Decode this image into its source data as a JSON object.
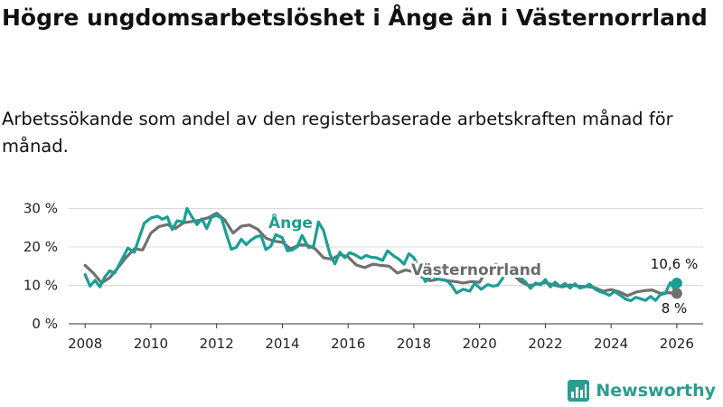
{
  "title": "Högre ungdomsarbetslöshet i Ånge än i Västernorrland",
  "subtitle": "Arbetssökande som andel av den registerbaserade arbetskraften månad för månad.",
  "logo": {
    "text": "Newsworthy",
    "icon": "bar-chart-icon"
  },
  "colors": {
    "ange": "#1a9f94",
    "vasternorrland": "#707070",
    "grid": "#d9d9d9"
  },
  "chart_data": {
    "type": "line",
    "xlabel": "",
    "ylabel": "",
    "xlim": [
      2007.5,
      2026.8
    ],
    "ylim": [
      0,
      32
    ],
    "grid": true,
    "xticks": [
      2008,
      2010,
      2012,
      2014,
      2016,
      2018,
      2020,
      2022,
      2024,
      2026
    ],
    "xtick_labels": [
      "2008",
      "2010",
      "2012",
      "2014",
      "2016",
      "2018",
      "2020",
      "2022",
      "2024",
      "2026"
    ],
    "yticks": [
      0,
      10,
      20,
      30
    ],
    "ytick_labels": [
      "0 %",
      "10 %",
      "20 %",
      "30 %"
    ],
    "series": [
      {
        "name": "Västernorrland",
        "color": "#707070",
        "end_label": "8 %",
        "points": [
          [
            2008.0,
            15.2
          ],
          [
            2008.25,
            13.2
          ],
          [
            2008.5,
            10.6
          ],
          [
            2008.75,
            12.0
          ],
          [
            2009.0,
            14.6
          ],
          [
            2009.25,
            17.3
          ],
          [
            2009.5,
            19.5
          ],
          [
            2009.75,
            19.2
          ],
          [
            2010.0,
            23.6
          ],
          [
            2010.25,
            25.3
          ],
          [
            2010.5,
            25.8
          ],
          [
            2010.75,
            24.8
          ],
          [
            2011.0,
            26.3
          ],
          [
            2011.25,
            26.6
          ],
          [
            2011.5,
            27.0
          ],
          [
            2011.75,
            27.6
          ],
          [
            2012.0,
            28.8
          ],
          [
            2012.25,
            27.0
          ],
          [
            2012.5,
            23.6
          ],
          [
            2012.75,
            25.4
          ],
          [
            2013.0,
            25.7
          ],
          [
            2013.25,
            24.6
          ],
          [
            2013.5,
            22.3
          ],
          [
            2013.75,
            21.5
          ],
          [
            2014.0,
            21.2
          ],
          [
            2014.25,
            19.5
          ],
          [
            2014.5,
            20.5
          ],
          [
            2014.75,
            20.5
          ],
          [
            2015.0,
            19.5
          ],
          [
            2015.25,
            17.2
          ],
          [
            2015.5,
            16.8
          ],
          [
            2015.75,
            18.0
          ],
          [
            2016.0,
            17.4
          ],
          [
            2016.25,
            15.3
          ],
          [
            2016.5,
            14.6
          ],
          [
            2016.75,
            15.5
          ],
          [
            2017.0,
            15.2
          ],
          [
            2017.25,
            15.0
          ],
          [
            2017.5,
            13.2
          ],
          [
            2017.75,
            14.0
          ],
          [
            2018.0,
            13.5
          ],
          [
            2018.25,
            12.1
          ],
          [
            2018.5,
            11.2
          ],
          [
            2018.75,
            11.6
          ],
          [
            2019.0,
            11.2
          ],
          [
            2019.25,
            11.0
          ],
          [
            2019.5,
            10.6
          ],
          [
            2019.75,
            11.0
          ],
          [
            2020.0,
            10.8
          ],
          [
            2020.25,
            14.5
          ],
          [
            2020.5,
            15.5
          ],
          [
            2020.75,
            14.5
          ],
          [
            2021.0,
            13.0
          ],
          [
            2021.25,
            11.0
          ],
          [
            2021.5,
            9.9
          ],
          [
            2021.75,
            10.3
          ],
          [
            2022.0,
            10.7
          ],
          [
            2022.25,
            10.1
          ],
          [
            2022.5,
            9.6
          ],
          [
            2022.75,
            10.1
          ],
          [
            2023.0,
            9.8
          ],
          [
            2023.25,
            9.7
          ],
          [
            2023.5,
            9.4
          ],
          [
            2023.75,
            8.5
          ],
          [
            2024.0,
            8.9
          ],
          [
            2024.25,
            8.3
          ],
          [
            2024.5,
            7.3
          ],
          [
            2024.75,
            8.2
          ],
          [
            2025.0,
            8.6
          ],
          [
            2025.25,
            8.8
          ],
          [
            2025.5,
            7.9
          ],
          [
            2025.75,
            8.1
          ],
          [
            2026.0,
            7.9
          ]
        ]
      },
      {
        "name": "Ånge",
        "color": "#1a9f94",
        "end_label": "10,6 %",
        "points": [
          [
            2008.0,
            12.8
          ],
          [
            2008.15,
            9.8
          ],
          [
            2008.3,
            11.3
          ],
          [
            2008.45,
            9.6
          ],
          [
            2008.6,
            12.2
          ],
          [
            2008.75,
            13.8
          ],
          [
            2008.9,
            13.2
          ],
          [
            2009.1,
            16.4
          ],
          [
            2009.3,
            19.7
          ],
          [
            2009.5,
            18.6
          ],
          [
            2009.65,
            22.5
          ],
          [
            2009.8,
            26.2
          ],
          [
            2010.0,
            27.5
          ],
          [
            2010.2,
            28.0
          ],
          [
            2010.35,
            27.2
          ],
          [
            2010.5,
            27.8
          ],
          [
            2010.65,
            24.5
          ],
          [
            2010.8,
            26.8
          ],
          [
            2011.0,
            26.5
          ],
          [
            2011.1,
            30.0
          ],
          [
            2011.25,
            27.8
          ],
          [
            2011.4,
            25.8
          ],
          [
            2011.55,
            27.3
          ],
          [
            2011.7,
            24.8
          ],
          [
            2011.85,
            27.8
          ],
          [
            2012.0,
            28.2
          ],
          [
            2012.15,
            27.5
          ],
          [
            2012.3,
            23.2
          ],
          [
            2012.45,
            19.4
          ],
          [
            2012.6,
            19.9
          ],
          [
            2012.75,
            22.0
          ],
          [
            2012.9,
            20.6
          ],
          [
            2013.05,
            21.8
          ],
          [
            2013.2,
            22.6
          ],
          [
            2013.35,
            23.0
          ],
          [
            2013.5,
            19.3
          ],
          [
            2013.65,
            20.2
          ],
          [
            2013.8,
            23.2
          ],
          [
            2014.0,
            22.4
          ],
          [
            2014.15,
            19.0
          ],
          [
            2014.3,
            19.2
          ],
          [
            2014.45,
            20.0
          ],
          [
            2014.6,
            23.0
          ],
          [
            2014.8,
            19.8
          ],
          [
            2014.95,
            20.2
          ],
          [
            2015.1,
            26.5
          ],
          [
            2015.25,
            24.3
          ],
          [
            2015.45,
            18.0
          ],
          [
            2015.6,
            15.6
          ],
          [
            2015.75,
            18.6
          ],
          [
            2015.9,
            17.2
          ],
          [
            2016.05,
            18.5
          ],
          [
            2016.2,
            18.0
          ],
          [
            2016.4,
            17.0
          ],
          [
            2016.55,
            17.8
          ],
          [
            2016.7,
            17.3
          ],
          [
            2016.85,
            17.2
          ],
          [
            2017.05,
            16.5
          ],
          [
            2017.2,
            19.0
          ],
          [
            2017.4,
            17.6
          ],
          [
            2017.55,
            16.8
          ],
          [
            2017.7,
            15.5
          ],
          [
            2017.85,
            18.2
          ],
          [
            2018.0,
            17.2
          ],
          [
            2018.15,
            14.5
          ],
          [
            2018.35,
            11.0
          ],
          [
            2018.55,
            12.6
          ],
          [
            2018.75,
            11.6
          ],
          [
            2019.0,
            11.3
          ],
          [
            2019.15,
            10.0
          ],
          [
            2019.3,
            8.0
          ],
          [
            2019.5,
            9.0
          ],
          [
            2019.7,
            8.5
          ],
          [
            2019.85,
            10.5
          ],
          [
            2020.05,
            9.0
          ],
          [
            2020.25,
            10.2
          ],
          [
            2020.4,
            9.8
          ],
          [
            2020.55,
            10.0
          ],
          [
            2020.75,
            12.4
          ],
          [
            2021.0,
            13.5
          ],
          [
            2021.2,
            12.2
          ],
          [
            2021.4,
            10.9
          ],
          [
            2021.55,
            9.2
          ],
          [
            2021.7,
            10.6
          ],
          [
            2021.85,
            10.1
          ],
          [
            2022.0,
            11.5
          ],
          [
            2022.15,
            9.6
          ],
          [
            2022.3,
            10.8
          ],
          [
            2022.45,
            9.7
          ],
          [
            2022.6,
            10.5
          ],
          [
            2022.75,
            9.3
          ],
          [
            2022.9,
            10.4
          ],
          [
            2023.05,
            9.3
          ],
          [
            2023.2,
            9.6
          ],
          [
            2023.35,
            10.3
          ],
          [
            2023.5,
            9.1
          ],
          [
            2023.65,
            8.4
          ],
          [
            2023.8,
            8.0
          ],
          [
            2023.95,
            7.4
          ],
          [
            2024.1,
            8.4
          ],
          [
            2024.3,
            7.3
          ],
          [
            2024.45,
            6.4
          ],
          [
            2024.6,
            6.0
          ],
          [
            2024.75,
            6.9
          ],
          [
            2024.9,
            6.5
          ],
          [
            2025.05,
            6.1
          ],
          [
            2025.2,
            7.1
          ],
          [
            2025.35,
            6.1
          ],
          [
            2025.5,
            7.6
          ],
          [
            2025.65,
            7.9
          ],
          [
            2025.8,
            10.7
          ],
          [
            2025.95,
            8.6
          ],
          [
            2026.0,
            10.6
          ]
        ]
      }
    ],
    "annotations": [
      {
        "text": "Ånge",
        "series": "Ånge"
      },
      {
        "text": "Västernorrland",
        "series": "Västernorrland"
      }
    ]
  }
}
